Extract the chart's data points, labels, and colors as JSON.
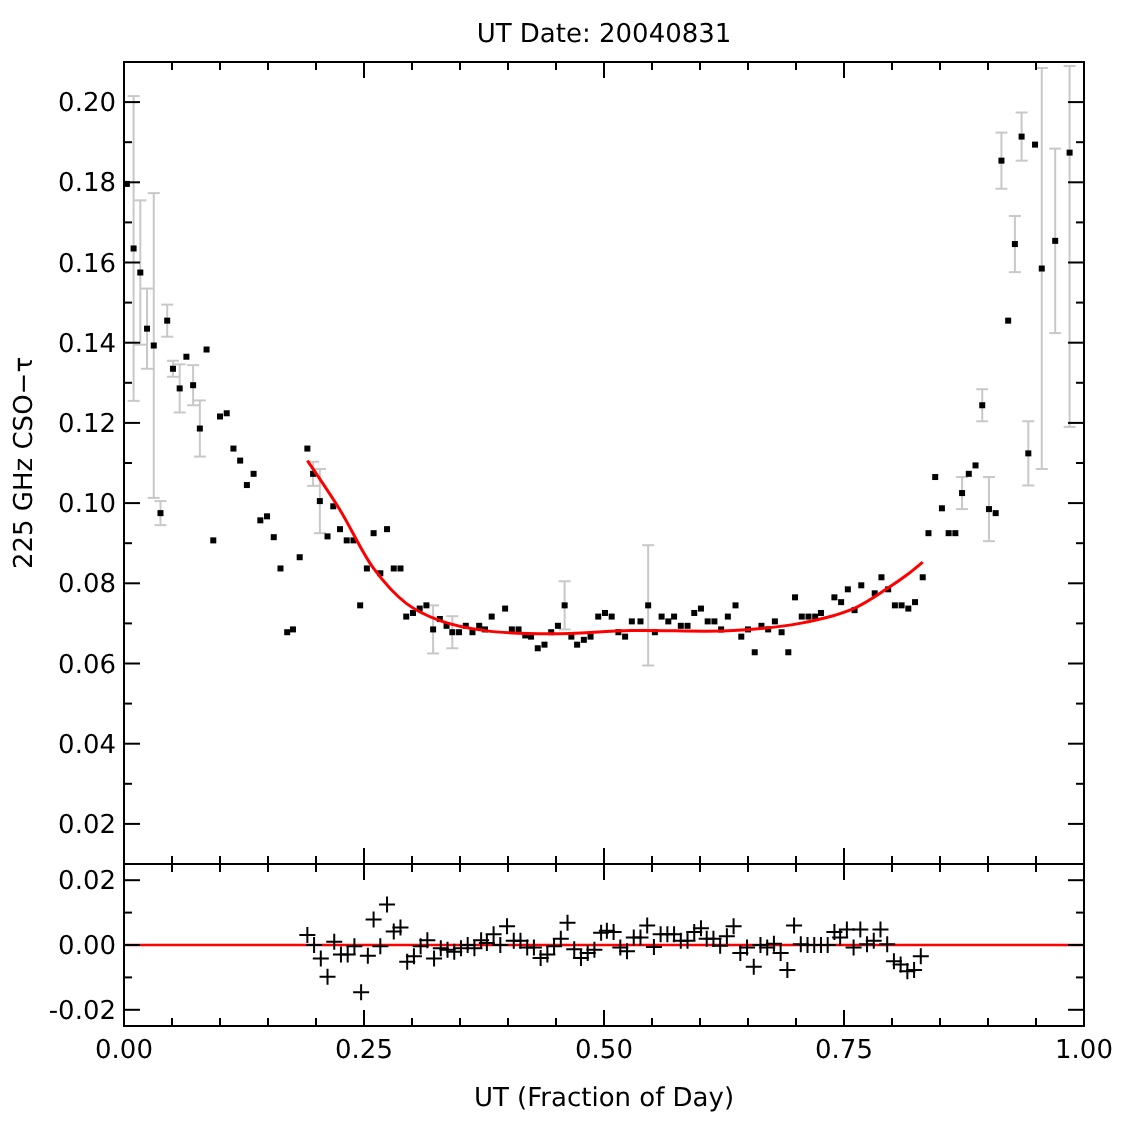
{
  "chart_data": [
    {
      "type": "scatter",
      "title": "UT Date: 20040831",
      "ylabel": "225 GHz CSO−τ",
      "xlim": [
        0,
        1
      ],
      "ylim": [
        0.01,
        0.21
      ],
      "tick_labels": "y",
      "grid": false,
      "xticks": [
        0,
        {
          "value": 0.05,
          "label": null
        },
        {
          "value": 0.1,
          "label": null
        },
        {
          "value": 0.15,
          "label": null
        },
        {
          "value": 0.2,
          "label": null
        },
        0.25,
        {
          "value": 0.3,
          "label": null
        },
        {
          "value": 0.35,
          "label": null
        },
        {
          "value": 0.4,
          "label": null
        },
        {
          "value": 0.45,
          "label": null
        },
        0.5,
        {
          "value": 0.55,
          "label": null
        },
        {
          "value": 0.6,
          "label": null
        },
        {
          "value": 0.65,
          "label": null
        },
        {
          "value": 0.7,
          "label": null
        },
        0.75,
        {
          "value": 0.8,
          "label": null
        },
        {
          "value": 0.85,
          "label": null
        },
        {
          "value": 0.9,
          "label": null
        },
        {
          "value": 0.95,
          "label": null
        },
        1
      ],
      "yticks": [
        {
          "value": 0.02,
          "label": "0.02"
        },
        {
          "value": 0.03,
          "label": null
        },
        {
          "value": 0.04,
          "label": "0.04"
        },
        {
          "value": 0.05,
          "label": null
        },
        {
          "value": 0.06,
          "label": "0.06"
        },
        {
          "value": 0.07,
          "label": null
        },
        {
          "value": 0.08,
          "label": "0.08"
        },
        {
          "value": 0.09,
          "label": null
        },
        {
          "value": 0.1,
          "label": "0.10"
        },
        {
          "value": 0.11,
          "label": null
        },
        {
          "value": 0.12,
          "label": "0.12"
        },
        {
          "value": 0.13,
          "label": null
        },
        {
          "value": 0.14,
          "label": "0.14"
        },
        {
          "value": 0.15,
          "label": null
        },
        {
          "value": 0.16,
          "label": "0.16"
        },
        {
          "value": 0.17,
          "label": null
        },
        {
          "value": 0.18,
          "label": "0.18"
        },
        {
          "value": 0.19,
          "label": null
        },
        {
          "value": 0.2,
          "label": "0.20"
        }
      ],
      "series": [
        {
          "color": "#000000",
          "marker": "square",
          "x": [
            0.003,
            0.01,
            0.017,
            0.024,
            0.031,
            0.038,
            0.045,
            0.051,
            0.058,
            0.065,
            0.072,
            0.079,
            0.086,
            0.093,
            0.1,
            0.107,
            0.114,
            0.121,
            0.128,
            0.135,
            0.142,
            0.149,
            0.156,
            0.163,
            0.17,
            0.176,
            0.183,
            0.191,
            0.197,
            0.204,
            0.212,
            0.218,
            0.225,
            0.232,
            0.239,
            0.246,
            0.253,
            0.26,
            0.267,
            0.274,
            0.281,
            0.288,
            0.294,
            0.301,
            0.308,
            0.315,
            0.322,
            0.329,
            0.336,
            0.342,
            0.349,
            0.356,
            0.363,
            0.37,
            0.376,
            0.383,
            0.397,
            0.404,
            0.411,
            0.418,
            0.424,
            0.431,
            0.438,
            0.445,
            0.452,
            0.459,
            0.466,
            0.472,
            0.479,
            0.486,
            0.494,
            0.501,
            0.508,
            0.515,
            0.522,
            0.529,
            0.538,
            0.546,
            0.553,
            0.56,
            0.567,
            0.573,
            0.58,
            0.587,
            0.594,
            0.601,
            0.608,
            0.615,
            0.622,
            0.629,
            0.637,
            0.643,
            0.65,
            0.657,
            0.664,
            0.671,
            0.678,
            0.685,
            0.692,
            0.699,
            0.706,
            0.713,
            0.72,
            0.726,
            0.74,
            0.747,
            0.754,
            0.761,
            0.768,
            0.782,
            0.789,
            0.796,
            0.803,
            0.81,
            0.817,
            0.824,
            0.832,
            0.838,
            0.845,
            0.852,
            0.859,
            0.866,
            0.873,
            0.88,
            0.887,
            0.894,
            0.901,
            0.908,
            0.914,
            0.921,
            0.928,
            0.935,
            0.942,
            0.949,
            0.956,
            0.97,
            0.985
          ],
          "values": [
            0.1796,
            0.1635,
            0.1575,
            0.1435,
            0.1393,
            0.0975,
            0.1455,
            0.1335,
            0.1286,
            0.1365,
            0.1294,
            0.1186,
            0.1383,
            0.0907,
            0.1216,
            0.1224,
            0.1136,
            0.1106,
            0.1045,
            0.1073,
            0.0957,
            0.0967,
            0.0915,
            0.0837,
            0.0678,
            0.0685,
            0.0865,
            0.1136,
            0.1073,
            0.1005,
            0.0917,
            0.0992,
            0.0935,
            0.0907,
            0.0907,
            0.0745,
            0.0837,
            0.0925,
            0.0825,
            0.0935,
            0.0837,
            0.0837,
            0.0717,
            0.0726,
            0.0737,
            0.0745,
            0.0685,
            0.0711,
            0.0694,
            0.0678,
            0.0678,
            0.0694,
            0.0678,
            0.0694,
            0.0685,
            0.0717,
            0.0737,
            0.0685,
            0.0685,
            0.067,
            0.0667,
            0.0638,
            0.0647,
            0.0678,
            0.0694,
            0.0745,
            0.0667,
            0.0647,
            0.0659,
            0.0667,
            0.0717,
            0.0726,
            0.0717,
            0.0678,
            0.0667,
            0.0705,
            0.0705,
            0.0745,
            0.0678,
            0.0717,
            0.0705,
            0.0717,
            0.0694,
            0.0694,
            0.0726,
            0.0737,
            0.0705,
            0.0705,
            0.0685,
            0.0717,
            0.0745,
            0.0667,
            0.0685,
            0.0628,
            0.0694,
            0.0685,
            0.0705,
            0.0678,
            0.0628,
            0.0765,
            0.0717,
            0.0717,
            0.0717,
            0.0726,
            0.0765,
            0.0753,
            0.0785,
            0.0733,
            0.0795,
            0.0775,
            0.0815,
            0.0785,
            0.0745,
            0.0745,
            0.0737,
            0.0753,
            0.0815,
            0.0925,
            0.1065,
            0.0987,
            0.0925,
            0.0925,
            0.1025,
            0.1073,
            0.1094,
            0.1244,
            0.0985,
            0.0975,
            0.1854,
            0.1455,
            0.1646,
            0.1914,
            0.1124,
            0.1894,
            0.1585,
            0.1654,
            0.1874
          ],
          "errors": [
            null,
            0.038,
            0.018,
            0.01,
            0.038,
            0.003,
            0.004,
            0.002,
            0.006,
            null,
            0.005,
            0.007,
            null,
            null,
            null,
            null,
            null,
            null,
            null,
            null,
            null,
            null,
            null,
            null,
            null,
            null,
            null,
            null,
            0.003,
            0.008,
            null,
            null,
            null,
            null,
            null,
            null,
            null,
            null,
            null,
            null,
            null,
            null,
            null,
            null,
            null,
            null,
            0.006,
            null,
            null,
            0.004,
            null,
            null,
            null,
            null,
            null,
            null,
            null,
            null,
            null,
            null,
            null,
            null,
            null,
            null,
            null,
            0.006,
            null,
            null,
            null,
            null,
            null,
            null,
            null,
            null,
            null,
            null,
            null,
            0.015,
            null,
            null,
            null,
            null,
            null,
            null,
            null,
            null,
            null,
            null,
            null,
            null,
            null,
            null,
            null,
            null,
            null,
            null,
            null,
            null,
            null,
            null,
            null,
            null,
            null,
            null,
            null,
            null,
            null,
            null,
            null,
            null,
            null,
            null,
            null,
            null,
            null,
            null,
            null,
            null,
            null,
            null,
            null,
            null,
            0.004,
            null,
            null,
            0.004,
            0.008,
            null,
            0.007,
            null,
            0.007,
            0.006,
            0.008,
            null,
            0.05,
            0.023,
            [
              0.119,
              0.209
            ]
          ]
        },
        {
          "type": "line",
          "color": "#ff0000",
          "line_style": "solid",
          "x": [
            0.191,
            0.225,
            0.26,
            0.294,
            0.329,
            0.376,
            0.445,
            0.529,
            0.635,
            0.704,
            0.76,
            0.795,
            0.815,
            0.832
          ],
          "values": [
            0.1106,
            0.0983,
            0.0837,
            0.075,
            0.0707,
            0.0682,
            0.0674,
            0.0682,
            0.0682,
            0.07,
            0.0737,
            0.0787,
            0.082,
            0.0853
          ]
        }
      ]
    },
    {
      "type": "scatter",
      "xlabel": "UT (Fraction of Day)",
      "xlim": [
        0,
        1
      ],
      "ylim": [
        -0.025,
        0.025
      ],
      "grid": false,
      "xticks": [
        {
          "value": 0,
          "label": "0.00"
        },
        {
          "value": 0.05,
          "label": null
        },
        {
          "value": 0.1,
          "label": null
        },
        {
          "value": 0.15,
          "label": null
        },
        {
          "value": 0.2,
          "label": null
        },
        {
          "value": 0.25,
          "label": "0.25"
        },
        {
          "value": 0.3,
          "label": null
        },
        {
          "value": 0.35,
          "label": null
        },
        {
          "value": 0.4,
          "label": null
        },
        {
          "value": 0.45,
          "label": null
        },
        {
          "value": 0.5,
          "label": "0.50"
        },
        {
          "value": 0.55,
          "label": null
        },
        {
          "value": 0.6,
          "label": null
        },
        {
          "value": 0.65,
          "label": null
        },
        {
          "value": 0.7,
          "label": null
        },
        {
          "value": 0.75,
          "label": "0.75"
        },
        {
          "value": 0.8,
          "label": null
        },
        {
          "value": 0.85,
          "label": null
        },
        {
          "value": 0.9,
          "label": null
        },
        {
          "value": 0.95,
          "label": null
        },
        {
          "value": 1,
          "label": "1.00"
        }
      ],
      "yticks": [
        {
          "value": -0.02,
          "label": "-0.02"
        },
        {
          "value": -0.01,
          "label": null
        },
        {
          "value": 0,
          "label": "0.00"
        },
        {
          "value": 0.01,
          "label": null
        },
        {
          "value": 0.02,
          "label": "0.02"
        }
      ],
      "ref_lines": [
        {
          "axis": "y",
          "value": 0,
          "color": "#ff0000"
        }
      ],
      "series": [
        {
          "color": "#000000",
          "marker": "cross",
          "x": [
            0.191,
            0.198,
            0.205,
            0.212,
            0.219,
            0.226,
            0.233,
            0.24,
            0.247,
            0.254,
            0.26,
            0.267,
            0.274,
            0.281,
            0.288,
            0.295,
            0.302,
            0.309,
            0.316,
            0.323,
            0.33,
            0.337,
            0.344,
            0.351,
            0.358,
            0.365,
            0.372,
            0.378,
            0.385,
            0.392,
            0.399,
            0.406,
            0.413,
            0.42,
            0.427,
            0.434,
            0.441,
            0.448,
            0.455,
            0.462,
            0.469,
            0.476,
            0.483,
            0.49,
            0.497,
            0.503,
            0.51,
            0.517,
            0.524,
            0.531,
            0.538,
            0.545,
            0.552,
            0.559,
            0.566,
            0.573,
            0.58,
            0.587,
            0.594,
            0.601,
            0.607,
            0.614,
            0.621,
            0.628,
            0.635,
            0.642,
            0.649,
            0.656,
            0.663,
            0.67,
            0.677,
            0.684,
            0.691,
            0.698,
            0.705,
            0.712,
            0.719,
            0.726,
            0.733,
            0.74,
            0.746,
            0.753,
            0.76,
            0.767,
            0.774,
            0.781,
            0.788,
            0.795,
            0.802,
            0.809,
            0.816,
            0.823,
            0.83
          ],
          "values": [
            0.0031,
            0,
            -0.0042,
            -0.0098,
            0.001,
            -0.0029,
            -0.0029,
            -0.0004,
            -0.0146,
            -0.0033,
            0.0079,
            -0.0004,
            0.0125,
            0.0042,
            0.0054,
            -0.0052,
            -0.0035,
            -0.0004,
            0.0015,
            -0.0042,
            -0.001,
            -0.0015,
            -0.0021,
            -0.001,
            0,
            -0.001,
            0.0015,
            0.0006,
            0.0033,
            0,
            0.0058,
            0.0013,
            0.0013,
            -0.0008,
            -0.0008,
            -0.004,
            -0.0029,
            -0.0004,
            0.0019,
            0.0069,
            -0.0013,
            -0.004,
            -0.0025,
            -0.0015,
            0.0038,
            0.0044,
            0.004,
            -0.0008,
            -0.0019,
            0.0023,
            0.0023,
            0.006,
            -0.0006,
            0.0033,
            0.0033,
            0.0033,
            0.0013,
            0.0013,
            0.004,
            0.0052,
            0.0019,
            0.0019,
            -0.0002,
            0.0027,
            0.0058,
            -0.0025,
            -0.0008,
            -0.0067,
            0,
            -0.0008,
            0.0004,
            -0.0025,
            -0.0077,
            0.006,
            0.0002,
            0,
            0,
            0,
            0,
            0.004,
            0.0023,
            0.0048,
            -0.0008,
            0.0048,
            0.0002,
            0.0013,
            0.0048,
            0.0002,
            -0.005,
            -0.006,
            -0.0081,
            -0.0077,
            -0.0035
          ]
        }
      ]
    }
  ]
}
